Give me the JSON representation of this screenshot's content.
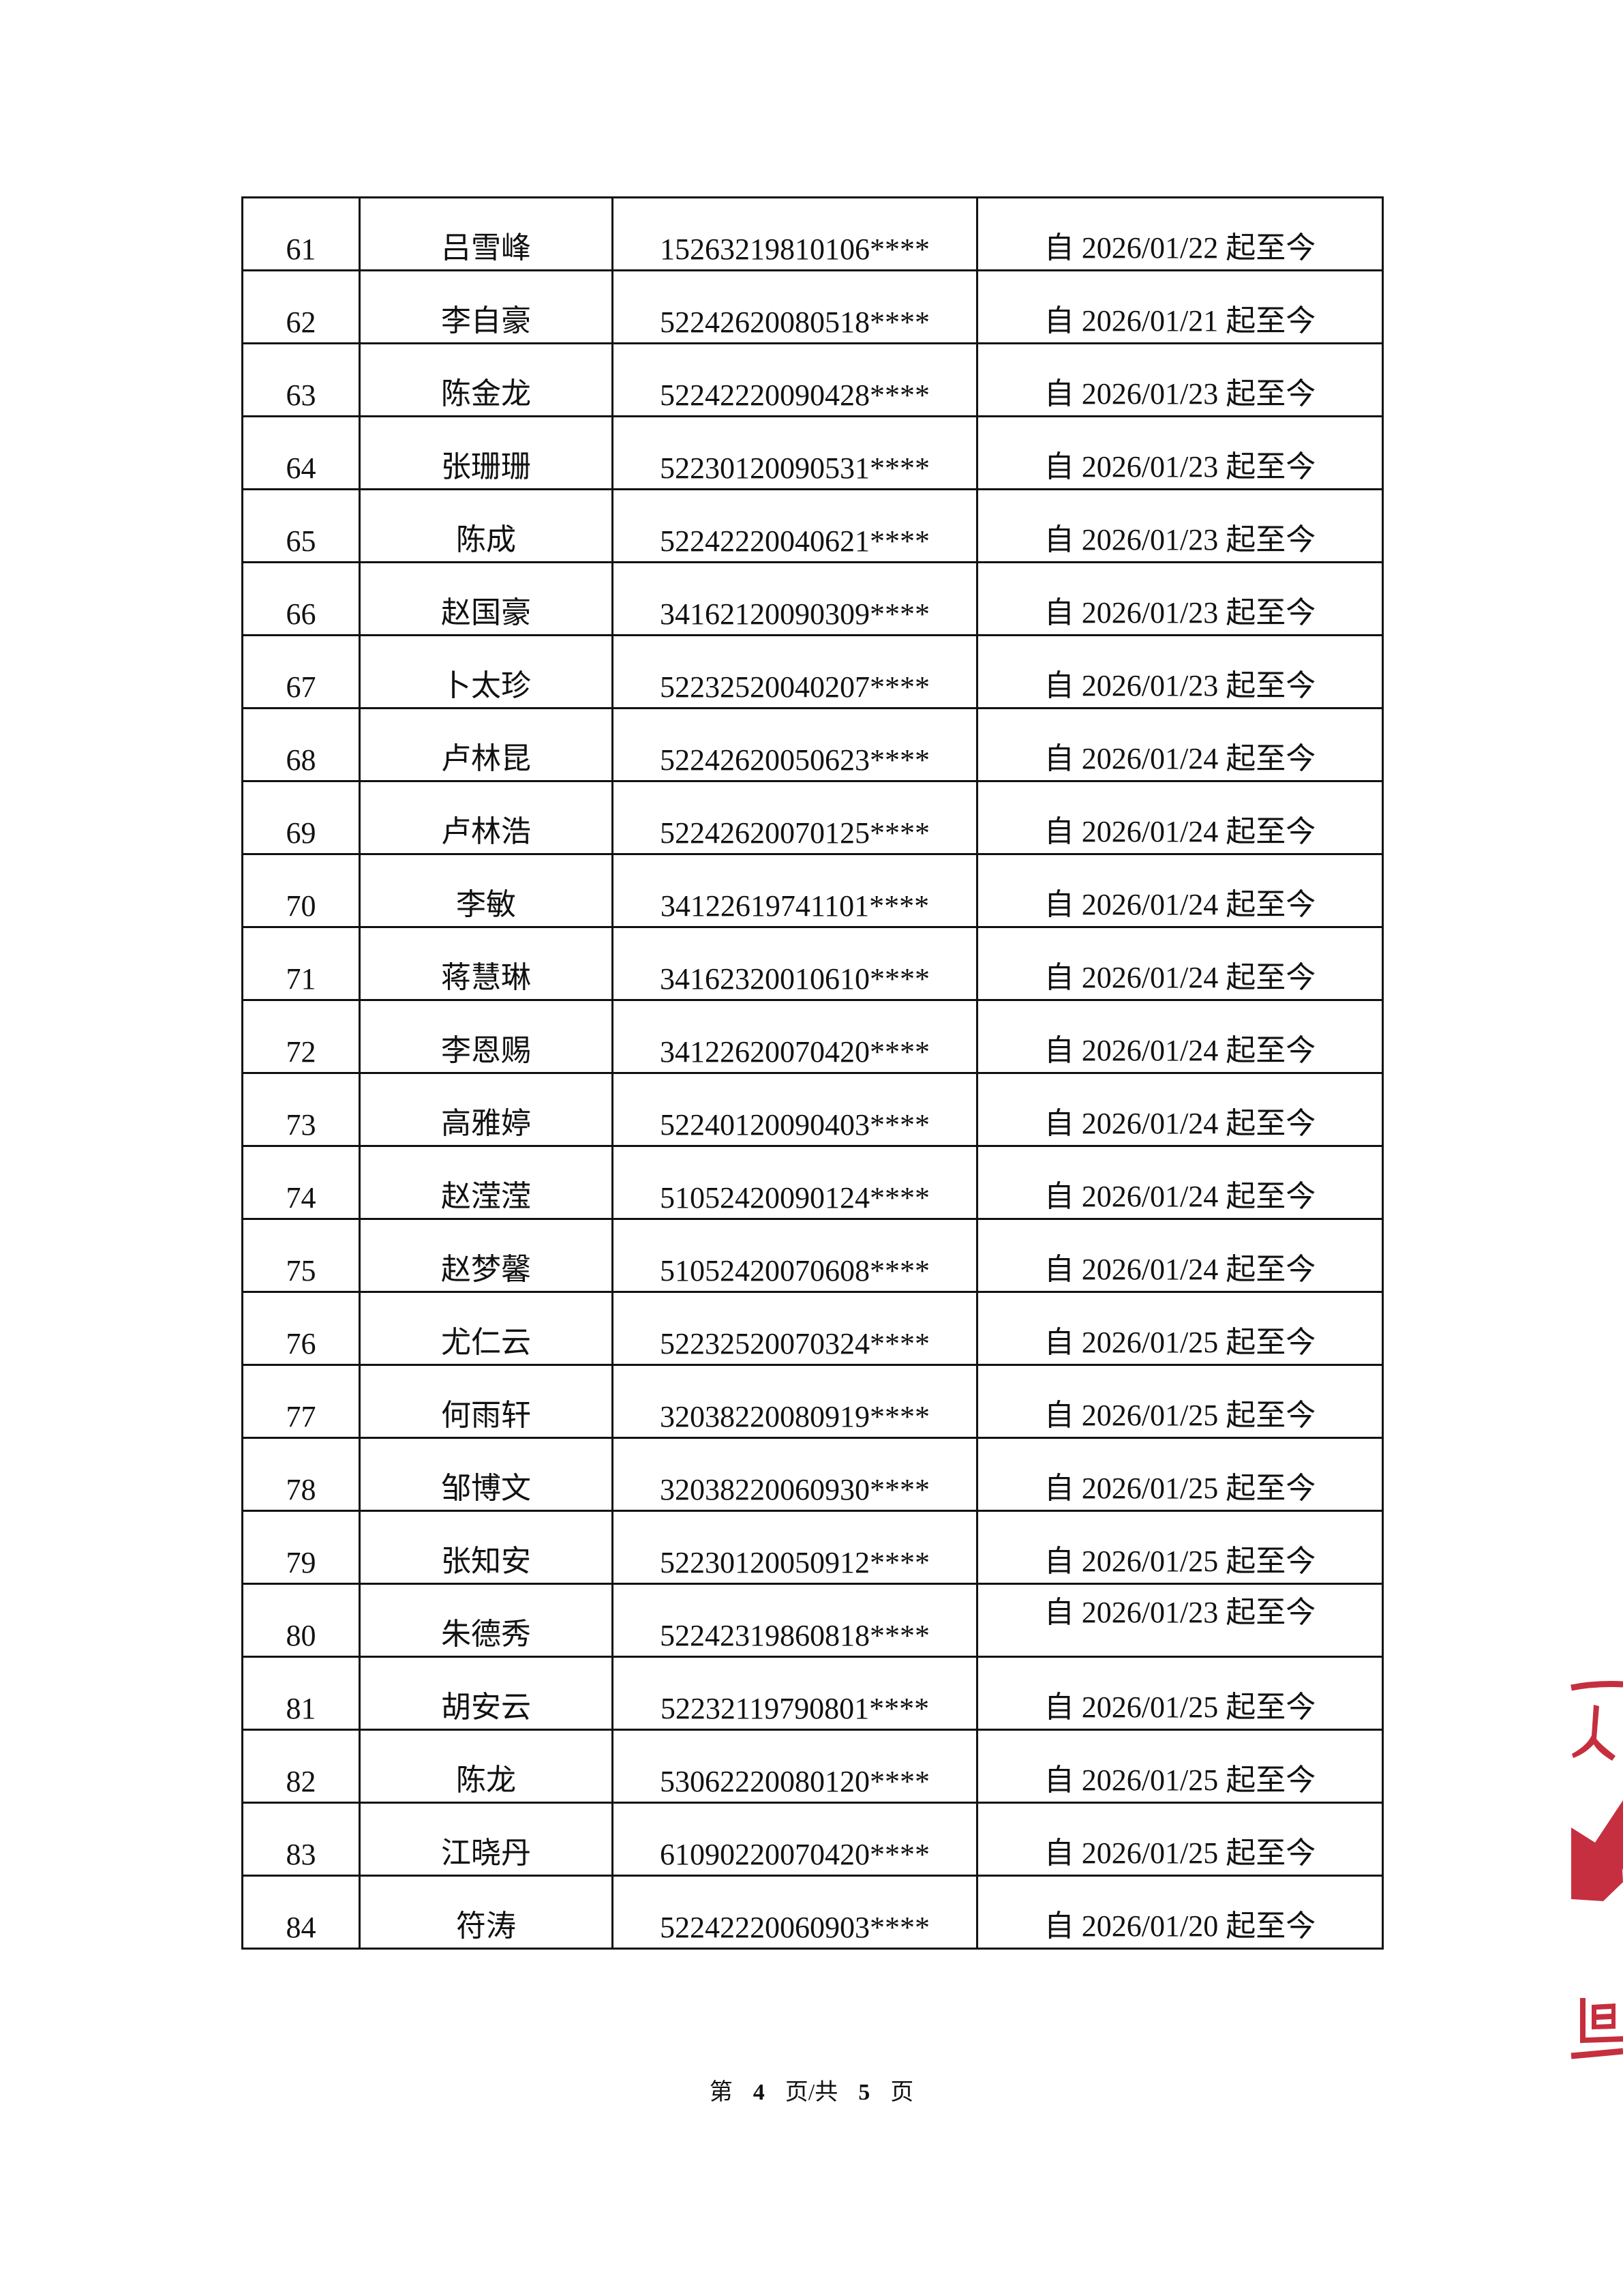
{
  "rows": [
    {
      "no": "61",
      "name": "吕雪峰",
      "id": "15263219810106****",
      "date": "自 2026/01/22 起至今"
    },
    {
      "no": "62",
      "name": "李自豪",
      "id": "52242620080518****",
      "date": "自 2026/01/21 起至今"
    },
    {
      "no": "63",
      "name": "陈金龙",
      "id": "52242220090428****",
      "date": "自 2026/01/23 起至今"
    },
    {
      "no": "64",
      "name": "张珊珊",
      "id": "52230120090531****",
      "date": "自 2026/01/23 起至今"
    },
    {
      "no": "65",
      "name": "陈成",
      "id": "52242220040621****",
      "date": "自 2026/01/23 起至今"
    },
    {
      "no": "66",
      "name": "赵国豪",
      "id": "34162120090309****",
      "date": "自 2026/01/23 起至今"
    },
    {
      "no": "67",
      "name": "卜太珍",
      "id": "52232520040207****",
      "date": "自 2026/01/23 起至今"
    },
    {
      "no": "68",
      "name": "卢林昆",
      "id": "52242620050623****",
      "date": "自 2026/01/24 起至今"
    },
    {
      "no": "69",
      "name": "卢林浩",
      "id": "52242620070125****",
      "date": "自 2026/01/24 起至今"
    },
    {
      "no": "70",
      "name": "李敏",
      "id": "34122619741101****",
      "date": "自 2026/01/24 起至今"
    },
    {
      "no": "71",
      "name": "蒋慧琳",
      "id": "34162320010610****",
      "date": "自 2026/01/24 起至今"
    },
    {
      "no": "72",
      "name": "李恩赐",
      "id": "34122620070420****",
      "date": "自 2026/01/24 起至今"
    },
    {
      "no": "73",
      "name": "高雅婷",
      "id": "52240120090403****",
      "date": "自 2026/01/24 起至今"
    },
    {
      "no": "74",
      "name": "赵滢滢",
      "id": "51052420090124****",
      "date": "自 2026/01/24 起至今"
    },
    {
      "no": "75",
      "name": "赵梦馨",
      "id": "51052420070608****",
      "date": "自 2026/01/24 起至今"
    },
    {
      "no": "76",
      "name": "尤仁云",
      "id": "52232520070324****",
      "date": "自 2026/01/25 起至今"
    },
    {
      "no": "77",
      "name": "何雨轩",
      "id": "32038220080919****",
      "date": "自 2026/01/25 起至今"
    },
    {
      "no": "78",
      "name": "邹博文",
      "id": "32038220060930****",
      "date": "自 2026/01/25 起至今"
    },
    {
      "no": "79",
      "name": "张知安",
      "id": "52230120050912****",
      "date": "自 2026/01/25 起至今"
    },
    {
      "no": "80",
      "name": "朱德秀",
      "id": "52242319860818****",
      "date": "自 2026/01/23 起至今",
      "date_align": "top"
    },
    {
      "no": "81",
      "name": "胡安云",
      "id": "52232119790801****",
      "date": "自 2026/01/25 起至今"
    },
    {
      "no": "82",
      "name": "陈龙",
      "id": "53062220080120****",
      "date": "自 2026/01/25 起至今"
    },
    {
      "no": "83",
      "name": "江晓丹",
      "id": "61090220070420****",
      "date": "自 2026/01/25 起至今"
    },
    {
      "no": "84",
      "name": "符涛",
      "id": "52242220060903****",
      "date": "自 2026/01/20 起至今"
    }
  ],
  "footer": {
    "prefix": "第",
    "current": "4",
    "middle": "页/共",
    "total": "5",
    "suffix": "页"
  },
  "stamp": {
    "visible_text": "人 巴",
    "color": "#c0182a"
  }
}
